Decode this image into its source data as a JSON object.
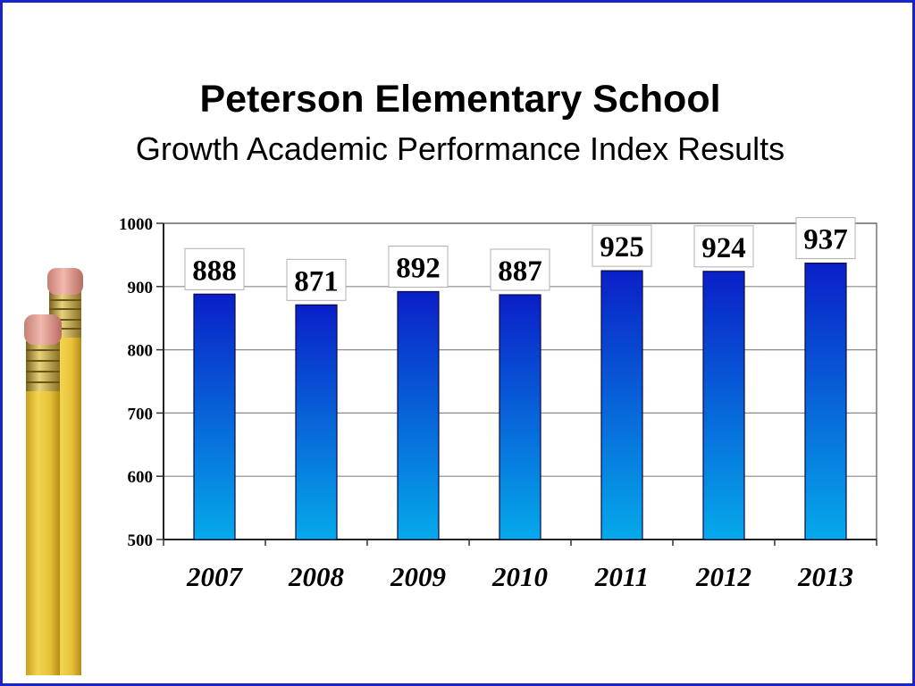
{
  "slide": {
    "title": "Peterson Elementary School",
    "subtitle": "Growth Academic Performance Index Results",
    "border_color": "#1b24c8"
  },
  "decoration": {
    "icon": "pencil-icon",
    "count": 2
  },
  "chart_data": {
    "type": "bar",
    "categories": [
      "2007",
      "2008",
      "2009",
      "2010",
      "2011",
      "2012",
      "2013"
    ],
    "values": [
      888,
      871,
      892,
      887,
      925,
      924,
      937
    ],
    "data_labels": [
      "888",
      "871",
      "892",
      "887",
      "925",
      "924",
      "937"
    ],
    "ylim": [
      500,
      1000
    ],
    "yticks": [
      500,
      600,
      700,
      800,
      900,
      1000
    ],
    "ytick_labels": [
      "500",
      "600",
      "700",
      "800",
      "900",
      "1000"
    ],
    "grid": true,
    "legend": "none",
    "bar_gradient": [
      "#0a1fc8",
      "#05aaea"
    ]
  }
}
